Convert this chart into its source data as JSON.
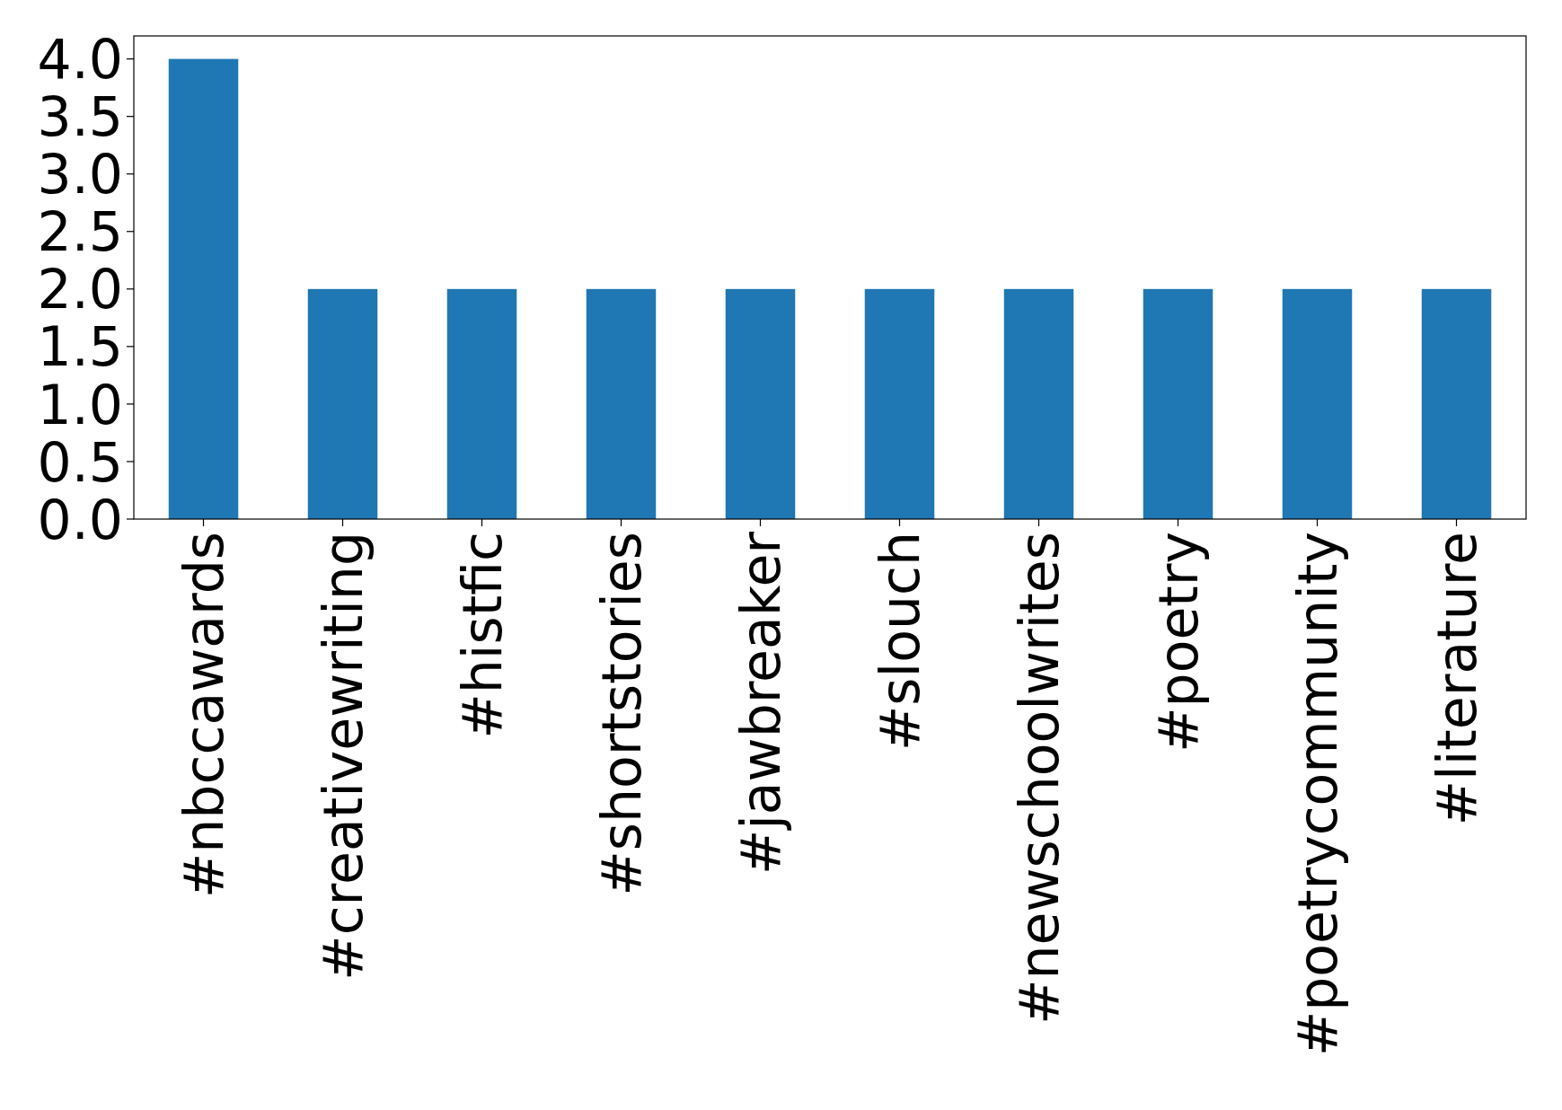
{
  "chart_data": {
    "type": "bar",
    "categories": [
      "#nbccawards",
      "#creativewriting",
      "#histfic",
      "#shortstories",
      "#jawbreaker",
      "#slouch",
      "#newschoolwrites",
      "#poetry",
      "#poetrycommunity",
      "#literature"
    ],
    "values": [
      4,
      2,
      2,
      2,
      2,
      2,
      2,
      2,
      2,
      2
    ],
    "color": "#1f77b4",
    "ylim": [
      0,
      4.2
    ],
    "yticks": [
      {
        "value": 0,
        "label": "0.0"
      },
      {
        "value": 0.5,
        "label": "0.5"
      },
      {
        "value": 1,
        "label": "1.0"
      },
      {
        "value": 1.5,
        "label": "1.5"
      },
      {
        "value": 2,
        "label": "2.0"
      },
      {
        "value": 2.5,
        "label": "2.5"
      },
      {
        "value": 3,
        "label": "3.0"
      },
      {
        "value": 3.5,
        "label": "3.5"
      },
      {
        "value": 4,
        "label": "4.0"
      }
    ]
  }
}
